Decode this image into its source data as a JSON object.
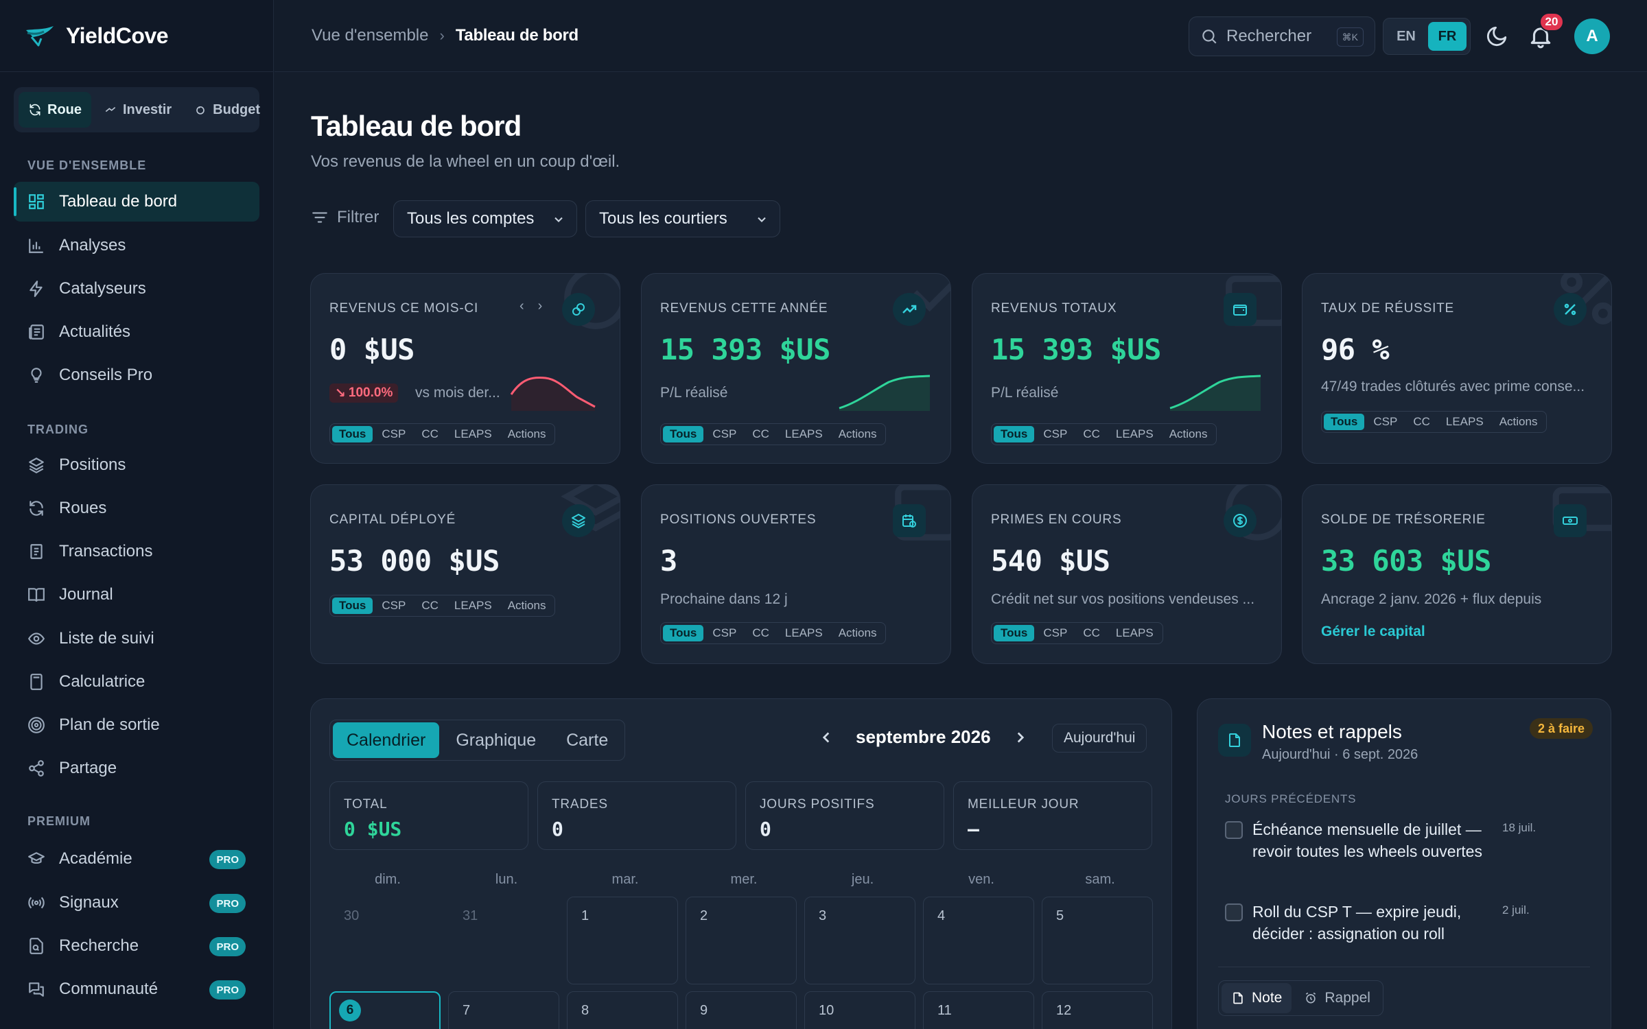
{
  "app": {
    "name": "YieldCove"
  },
  "sidebar": {
    "modes": [
      {
        "label": "Roue",
        "icon": "refresh-icon",
        "active": true
      },
      {
        "label": "Investir",
        "icon": "trend-icon",
        "active": false
      },
      {
        "label": "Budget",
        "icon": "piggy-icon",
        "active": false
      }
    ],
    "sections": {
      "overview": "VUE D'ENSEMBLE",
      "trading": "TRADING",
      "premium": "PREMIUM"
    },
    "overview_items": [
      {
        "label": "Tableau de bord",
        "icon": "dashboard-icon",
        "active": true
      },
      {
        "label": "Analyses",
        "icon": "bar-chart-icon"
      },
      {
        "label": "Catalyseurs",
        "icon": "bolt-icon"
      },
      {
        "label": "Actualités",
        "icon": "newspaper-icon"
      },
      {
        "label": "Conseils Pro",
        "icon": "lightbulb-icon"
      }
    ],
    "trading_items": [
      {
        "label": "Positions",
        "icon": "layers-icon"
      },
      {
        "label": "Roues",
        "icon": "refresh-icon"
      },
      {
        "label": "Transactions",
        "icon": "receipt-icon"
      },
      {
        "label": "Journal",
        "icon": "book-icon"
      },
      {
        "label": "Liste de suivi",
        "icon": "eye-icon"
      },
      {
        "label": "Calculatrice",
        "icon": "calculator-icon"
      },
      {
        "label": "Plan de sortie",
        "icon": "target-icon"
      },
      {
        "label": "Partage",
        "icon": "share-icon"
      }
    ],
    "premium_items": [
      {
        "label": "Académie",
        "icon": "graduation-icon",
        "badge": "PRO"
      },
      {
        "label": "Signaux",
        "icon": "broadcast-icon",
        "badge": "PRO"
      },
      {
        "label": "Recherche",
        "icon": "file-search-icon",
        "badge": "PRO"
      },
      {
        "label": "Communauté",
        "icon": "chat-icon",
        "badge": "PRO"
      }
    ]
  },
  "topbar": {
    "breadcrumb": [
      "Vue d'ensemble",
      "Tableau de bord"
    ],
    "search_placeholder": "Rechercher",
    "search_shortcut": "⌘K",
    "languages": [
      "EN",
      "FR"
    ],
    "active_language": "FR",
    "notifications_count": "20",
    "avatar_initial": "A"
  },
  "page": {
    "title": "Tableau de bord",
    "subtitle": "Vos revenus de la wheel en un coup d'œil.",
    "filter_label": "Filtrer",
    "account_select": "Tous les comptes",
    "broker_select": "Tous les courtiers"
  },
  "chip_sets": {
    "full": [
      "Tous",
      "CSP",
      "CC",
      "LEAPS",
      "Actions"
    ],
    "short": [
      "Tous",
      "CSP",
      "CC",
      "LEAPS"
    ]
  },
  "cards": {
    "month_income": {
      "label": "REVENUS CE MOIS-CI",
      "value": "0 $US",
      "trend": "100.0%",
      "trend_text": "vs mois der..."
    },
    "year_income": {
      "label": "REVENUS CETTE ANNÉE",
      "value": "15 393 $US",
      "sub": "P/L réalisé"
    },
    "total_income": {
      "label": "REVENUS TOTAUX",
      "value": "15 393 $US",
      "sub": "P/L réalisé"
    },
    "win_rate": {
      "label": "TAUX DE RÉUSSITE",
      "value": "96 %",
      "sub": "47/49 trades clôturés avec prime conse..."
    },
    "capital": {
      "label": "CAPITAL DÉPLOYÉ",
      "value": "53 000 $US"
    },
    "open_positions": {
      "label": "POSITIONS OUVERTES",
      "value": "3",
      "sub": "Prochaine dans 12 j"
    },
    "premiums": {
      "label": "PRIMES EN COURS",
      "value": "540 $US",
      "sub": "Crédit net sur vos positions vendeuses ..."
    },
    "cash": {
      "label": "SOLDE DE TRÉSORERIE",
      "value": "33 603 $US",
      "sub": "Ancrage 2 janv. 2026 + flux depuis",
      "link": "Gérer le capital"
    }
  },
  "calendar": {
    "tabs": [
      "Calendrier",
      "Graphique",
      "Carte"
    ],
    "month": "septembre 2026",
    "today_button": "Aujourd'hui",
    "stats": [
      {
        "label": "TOTAL",
        "value": "0 $US"
      },
      {
        "label": "TRADES",
        "value": "0"
      },
      {
        "label": "JOURS POSITIFS",
        "value": "0"
      },
      {
        "label": "MEILLEUR JOUR",
        "value": "—"
      }
    ],
    "weekdays": [
      "dim.",
      "lun.",
      "mar.",
      "mer.",
      "jeu.",
      "ven.",
      "sam."
    ],
    "week1": [
      "30",
      "31",
      "1",
      "2",
      "3",
      "4",
      "5"
    ],
    "week2": [
      "6",
      "7",
      "8",
      "9",
      "10",
      "11",
      "12"
    ]
  },
  "notes": {
    "title": "Notes et rappels",
    "date": "Aujourd'hui · 6 sept. 2026",
    "todo_badge": "2 à faire",
    "section": "JOURS PRÉCÉDENTS",
    "items": [
      {
        "text": "Échéance mensuelle de juillet — revoir toutes les wheels ouvertes",
        "date": "18 juil."
      },
      {
        "text": "Roll du CSP T — expire jeudi, décider : assignation ou roll",
        "date": "2 juil."
      }
    ],
    "tabs": [
      "Note",
      "Rappel"
    ]
  },
  "colors": {
    "accent": "#16a7b3",
    "positive": "#2fd59a",
    "negative": "#ff6b7e",
    "warning": "#f5b73c"
  }
}
